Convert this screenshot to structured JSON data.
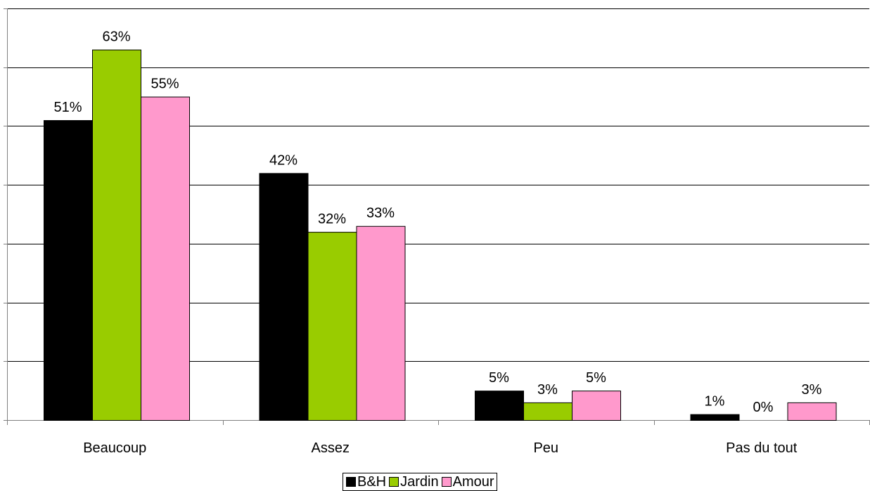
{
  "chart_data": {
    "type": "bar",
    "categories": [
      "Beaucoup",
      "Assez",
      "Peu",
      "Pas du tout"
    ],
    "series": [
      {
        "name": "B&H",
        "values": [
          51,
          42,
          5,
          1
        ],
        "labels": [
          "51%",
          "42%",
          "5%",
          "1%"
        ],
        "color": "#000000"
      },
      {
        "name": "Jardin",
        "values": [
          63,
          32,
          3,
          0
        ],
        "labels": [
          "63%",
          "32%",
          "3%",
          "0%"
        ],
        "color": "#99CC00"
      },
      {
        "name": "Amour",
        "values": [
          55,
          33,
          5,
          3
        ],
        "labels": [
          "55%",
          "33%",
          "5%",
          "3%"
        ],
        "color": "#FF99CC"
      }
    ],
    "ylim": [
      0,
      70
    ],
    "y_gridline_step": 10,
    "y_tick_labels_shown": false,
    "grid": true,
    "legend_position": "bottom"
  }
}
